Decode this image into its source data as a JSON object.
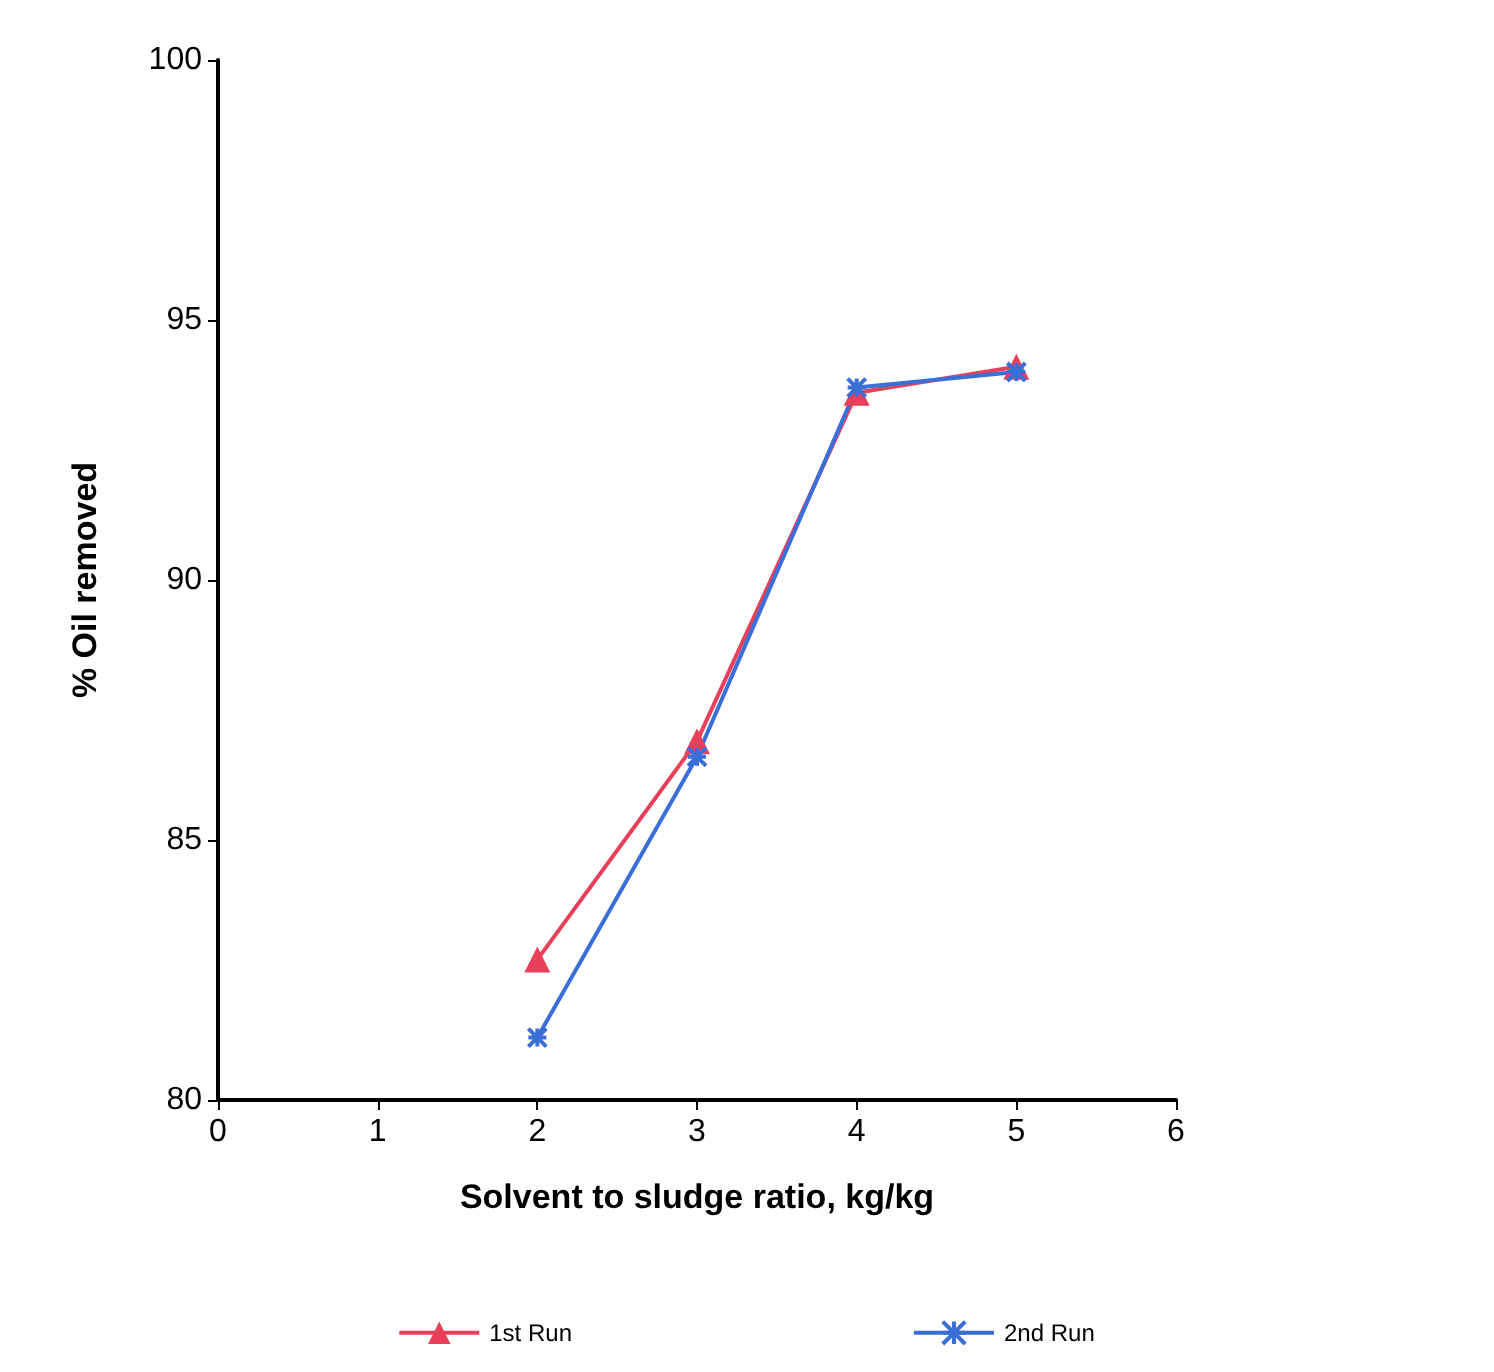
{
  "chart_data": {
    "type": "line",
    "xlabel": "Solvent to sludge ratio, kg/kg",
    "ylabel": "% Oil removed",
    "x": [
      2,
      3,
      4,
      5
    ],
    "series": [
      {
        "name": "1st Run",
        "color": "#e8405a",
        "values": [
          82.7,
          86.9,
          93.6,
          94.1
        ],
        "marker": "triangle"
      },
      {
        "name": "2nd Run",
        "color": "#3a6fd8",
        "values": [
          81.2,
          86.6,
          93.7,
          94.0
        ],
        "marker": "cross"
      }
    ],
    "xlim": [
      0,
      6
    ],
    "xticks": [
      0,
      1,
      2,
      3,
      4,
      5,
      6
    ],
    "ylim": [
      80,
      100
    ],
    "yticks": [
      80,
      85,
      90,
      95,
      100
    ],
    "grid": false,
    "legend": "bottom",
    "line_style": "solid"
  }
}
